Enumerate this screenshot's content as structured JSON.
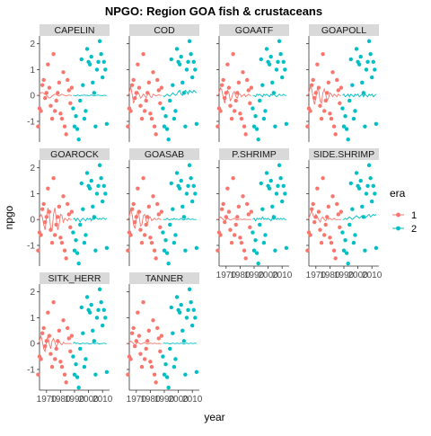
{
  "chart_data": {
    "type": "scatter",
    "title": "NPGO: Region GOA fish & crustaceans",
    "xlabel": "year",
    "ylabel": "npgo",
    "xlim": [
      1965,
      2015
    ],
    "ylim": [
      -1.8,
      2.3
    ],
    "yticks": [
      -1,
      0,
      1,
      2
    ],
    "xticks": [
      1970,
      1980,
      1990,
      2000,
      2010
    ],
    "xtick_labels": [
      "1970",
      "1980",
      "1990",
      "2000",
      "2010"
    ],
    "colors": {
      "1": "#F8766D",
      "2": "#00BFC4"
    },
    "legend": {
      "title": "era",
      "entries": [
        "1",
        "2"
      ],
      "position": "right"
    },
    "facets": [
      "CAPELIN",
      "COD",
      "GOAATF",
      "GOAPOLL",
      "GOAROCK",
      "GOASAB",
      "P.SHRIMP",
      "SIDE.SHRIMP",
      "SITK_HERR",
      "TANNER"
    ],
    "points": {
      "era1": [
        [
          1964,
          -1.2
        ],
        [
          1965,
          -0.5
        ],
        [
          1966,
          -0.6
        ],
        [
          1967,
          0.4
        ],
        [
          1968,
          0.6
        ],
        [
          1969,
          -0.1
        ],
        [
          1970,
          0.1
        ],
        [
          1971,
          1.2
        ],
        [
          1972,
          0.3
        ],
        [
          1973,
          -0.4
        ],
        [
          1974,
          -0.9
        ],
        [
          1975,
          1.6
        ],
        [
          1976,
          -0.6
        ],
        [
          1977,
          -0.2
        ],
        [
          1978,
          0.1
        ],
        [
          1979,
          0.5
        ],
        [
          1980,
          -0.7
        ],
        [
          1981,
          -0.9
        ],
        [
          1982,
          0.9
        ],
        [
          1983,
          -1.2
        ],
        [
          1984,
          -1.5
        ],
        [
          1985,
          0.6
        ],
        [
          1986,
          0.2
        ],
        [
          1987,
          -0.3
        ],
        [
          1988,
          0.3
        ]
      ],
      "era2": [
        [
          1989,
          -0.5
        ],
        [
          1990,
          -1.2
        ],
        [
          1991,
          -0.8
        ],
        [
          1992,
          -1.3
        ],
        [
          1993,
          -1.7
        ],
        [
          1994,
          -0.2
        ],
        [
          1995,
          1.4
        ],
        [
          1996,
          0.4
        ],
        [
          1997,
          -0.9
        ],
        [
          1998,
          -0.6
        ],
        [
          1999,
          1.8
        ],
        [
          2000,
          1.3
        ],
        [
          2001,
          1.2
        ],
        [
          2002,
          1.5
        ],
        [
          2003,
          0.5
        ],
        [
          2004,
          0.1
        ],
        [
          2005,
          -1.2
        ],
        [
          2006,
          1.0
        ],
        [
          2007,
          1.3
        ],
        [
          2008,
          2.1
        ],
        [
          2009,
          1.6
        ],
        [
          2010,
          0.7
        ],
        [
          2011,
          1.3
        ],
        [
          2012,
          1.0
        ],
        [
          2013,
          -1.1
        ]
      ]
    },
    "fit_line": {
      "CAPELIN": {
        "era1": [
          0.0,
          0.05,
          0.1,
          0.12,
          0.08,
          0.05,
          0.0,
          -0.05,
          -0.1,
          -0.08,
          -0.02,
          0.02,
          0.05,
          0.03,
          0.0,
          -0.02,
          0.02,
          0.05,
          0.02,
          0.0,
          -0.02,
          0.0,
          0.02,
          0.0,
          0.0
        ],
        "era2": [
          0.0,
          0.0,
          -0.02,
          0.02,
          0.0,
          -0.01,
          0.01,
          0.0,
          0.02,
          0.0,
          0.01,
          -0.01,
          0.0,
          0.02,
          0.0,
          -0.02,
          0.01,
          0.0,
          0.02,
          0.0,
          0.0,
          -0.01,
          0.01,
          0.0,
          0.0
        ]
      },
      "COD": {
        "era1": [
          0.0,
          0.1,
          0.35,
          0.05,
          -0.3,
          -0.15,
          0.0,
          0.15,
          0.05,
          -0.1,
          -0.05,
          0.05,
          0.0,
          -0.1,
          0.05,
          0.1,
          -0.05,
          -0.08,
          0.05,
          0.02,
          -0.02,
          0.0,
          0.03,
          0.0,
          0.0
        ],
        "era2": [
          0.0,
          -0.05,
          0.0,
          0.05,
          0.0,
          -0.03,
          0.03,
          0.1,
          0.05,
          0.0,
          0.05,
          0.15,
          0.2,
          0.05,
          0.0,
          0.1,
          0.2,
          0.15,
          0.05,
          0.2,
          0.15,
          0.1,
          0.2,
          0.15,
          0.1
        ]
      },
      "GOAATF": {
        "era1": [
          0.0,
          0.1,
          0.3,
          0.2,
          -0.1,
          -0.3,
          0.0,
          0.2,
          0.1,
          -0.2,
          -0.1,
          0.1,
          0.15,
          -0.05,
          -0.1,
          0.05,
          0.05,
          -0.05,
          0.0,
          0.05,
          -0.05,
          0.0,
          0.05,
          0.0,
          0.0
        ],
        "era2": [
          0.0,
          0.0,
          -0.05,
          0.05,
          0.0,
          0.05,
          0.0,
          -0.05,
          0.05,
          0.0,
          0.05,
          0.0,
          -0.05,
          0.05,
          0.0,
          0.05,
          0.0,
          -0.05,
          0.0,
          0.05,
          0.0,
          0.0,
          0.05,
          0.0,
          0.0
        ]
      },
      "GOAPOLL": {
        "era1": [
          0.0,
          0.1,
          0.35,
          0.25,
          -0.1,
          -0.35,
          -0.1,
          0.25,
          0.2,
          -0.2,
          -0.3,
          0.1,
          0.25,
          0.05,
          -0.2,
          -0.1,
          0.1,
          0.05,
          -0.05,
          0.05,
          0.0,
          -0.05,
          0.05,
          0.0,
          0.0
        ],
        "era2": [
          0.0,
          0.05,
          -0.05,
          0.0,
          0.05,
          -0.05,
          0.05,
          0.0,
          -0.05,
          0.05,
          0.0,
          0.05,
          -0.05,
          0.0,
          0.05,
          -0.05,
          0.05,
          0.0,
          -0.05,
          0.05,
          0.0,
          0.05,
          -0.05,
          0.0,
          0.05
        ]
      },
      "GOAROCK": {
        "era1": [
          0.0,
          0.05,
          0.2,
          0.1,
          -0.2,
          -0.4,
          0.1,
          0.45,
          0.2,
          -0.35,
          -0.4,
          0.2,
          0.45,
          0.0,
          -0.4,
          -0.2,
          0.2,
          0.15,
          -0.1,
          0.05,
          0.0,
          -0.05,
          0.05,
          0.0,
          0.0
        ],
        "era2": [
          0.0,
          0.05,
          -0.05,
          0.05,
          0.0,
          -0.1,
          0.0,
          0.05,
          0.0,
          -0.05,
          0.05,
          0.0,
          0.05,
          -0.05,
          0.05,
          0.0,
          0.05,
          0.05,
          0.0,
          0.05,
          0.0,
          0.05,
          0.05,
          0.0,
          0.05
        ]
      },
      "GOASAB": {
        "era1": [
          0.0,
          0.1,
          0.4,
          0.2,
          -0.2,
          -0.35,
          0.0,
          0.35,
          0.15,
          -0.25,
          -0.2,
          0.15,
          0.2,
          -0.05,
          -0.15,
          0.05,
          0.1,
          -0.05,
          0.0,
          0.05,
          0.0,
          0.0,
          0.05,
          0.0,
          0.0
        ],
        "era2": [
          0.0,
          0.0,
          0.0,
          0.05,
          0.0,
          -0.02,
          0.02,
          0.0,
          0.05,
          0.0,
          0.02,
          0.0,
          0.0,
          0.05,
          0.0,
          -0.02,
          0.02,
          0.0,
          0.05,
          0.0,
          0.0,
          0.02,
          0.0,
          0.0,
          0.0
        ]
      },
      "P.SHRIMP": {
        "era1": [
          0.0,
          0.05,
          0.1,
          0.05,
          0.0,
          -0.05,
          0.0,
          0.05,
          0.02,
          -0.02,
          0.0,
          0.02,
          0.05,
          0.0,
          -0.02,
          0.0,
          0.02,
          0.0,
          0.0,
          0.02,
          0.0,
          0.0,
          0.0,
          0.0,
          0.0
        ],
        "era2": [
          0.0,
          0.05,
          -0.05,
          0.05,
          0.0,
          0.05,
          0.0,
          0.1,
          0.0,
          0.05,
          0.0,
          0.05,
          0.0,
          -0.05,
          0.05,
          0.0,
          0.05,
          0.0,
          0.05,
          0.0,
          0.05,
          0.0,
          0.05,
          0.0,
          0.0
        ]
      },
      "SIDE.SHRIMP": {
        "era1": [
          0.0,
          0.05,
          0.2,
          0.35,
          0.15,
          0.05,
          0.2,
          0.1,
          0.0,
          -0.1,
          0.05,
          0.1,
          0.0,
          -0.05,
          0.05,
          0.0,
          0.05,
          0.0,
          0.0,
          0.05,
          0.0,
          0.0,
          0.0,
          0.0,
          0.0
        ],
        "era2": [
          0.0,
          0.0,
          0.05,
          0.0,
          0.05,
          0.1,
          0.05,
          0.0,
          0.05,
          0.1,
          0.15,
          0.1,
          0.05,
          0.1,
          0.15,
          0.1,
          0.05,
          0.1,
          0.15,
          0.2,
          0.1,
          0.15,
          0.2,
          0.15,
          0.2
        ]
      },
      "SITK_HERR": {
        "era1": [
          0.0,
          0.1,
          0.3,
          0.1,
          -0.2,
          -0.3,
          0.1,
          0.3,
          0.0,
          -0.2,
          0.1,
          0.2,
          0.05,
          -0.15,
          0.0,
          0.1,
          0.0,
          -0.05,
          0.05,
          0.0,
          0.0,
          0.0,
          0.0,
          0.0,
          0.0
        ],
        "era2": [
          0.0,
          0.05,
          0.0,
          0.02,
          0.0,
          -0.02,
          0.0,
          0.02,
          0.0,
          0.0,
          0.02,
          0.0,
          -0.02,
          0.0,
          0.02,
          0.0,
          0.0,
          0.02,
          0.0,
          -0.02,
          0.0,
          0.0,
          0.02,
          0.0,
          0.0
        ]
      },
      "TANNER": {
        "era1": [
          0.0,
          0.05,
          0.1,
          0.05,
          0.0,
          -0.05,
          0.0,
          0.05,
          0.02,
          -0.02,
          0.0,
          0.02,
          0.05,
          0.0,
          -0.02,
          0.0,
          0.02,
          0.0,
          0.0,
          0.02,
          0.0,
          0.0,
          0.0,
          0.0,
          0.0
        ],
        "era2": [
          0.0,
          0.02,
          0.0,
          0.02,
          0.0,
          -0.02,
          0.0,
          0.02,
          0.0,
          0.0,
          0.02,
          0.0,
          0.0,
          0.02,
          0.0,
          -0.02,
          0.0,
          0.02,
          0.0,
          0.0,
          0.02,
          0.0,
          0.0,
          0.02,
          0.0
        ]
      }
    }
  }
}
